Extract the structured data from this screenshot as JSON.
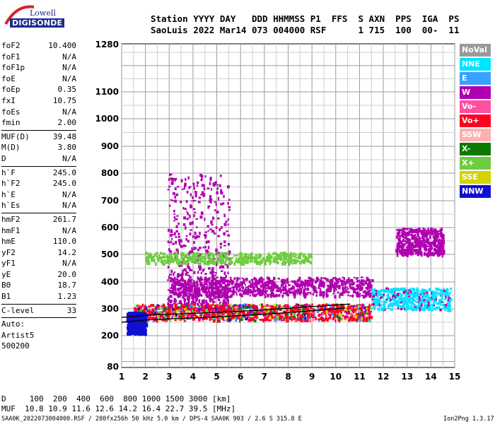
{
  "logo": {
    "top": "Lowell",
    "main": "DIGISONDE"
  },
  "header": {
    "labels": "Station YYYY DAY   DDD HHMMSS P1  FFS  S AXN  PPS  IGA  PS",
    "values": "SaoLuis 2022 Mar14 073 004000 RSF      1 715  100  00-  11"
  },
  "params": [
    {
      "group": [
        {
          "name": "foF2",
          "value": "10.400"
        },
        {
          "name": "foF1",
          "value": "N/A"
        },
        {
          "name": "foF1p",
          "value": "N/A"
        },
        {
          "name": "foE",
          "value": "N/A"
        },
        {
          "name": "foEp",
          "value": "0.35"
        },
        {
          "name": "fxI",
          "value": "10.75"
        },
        {
          "name": "foEs",
          "value": "N/A"
        },
        {
          "name": "fmin",
          "value": "2.00"
        }
      ]
    },
    {
      "group": [
        {
          "name": "MUF(D)",
          "value": "39.48"
        },
        {
          "name": "M(D)",
          "value": "3.80"
        },
        {
          "name": "D",
          "value": "N/A"
        }
      ]
    },
    {
      "group": [
        {
          "name": "h`F",
          "value": "245.0"
        },
        {
          "name": "h`F2",
          "value": "245.0"
        },
        {
          "name": "h`E",
          "value": "N/A"
        },
        {
          "name": "h`Es",
          "value": "N/A"
        }
      ]
    },
    {
      "group": [
        {
          "name": "hmF2",
          "value": "261.7"
        },
        {
          "name": "hmF1",
          "value": "N/A"
        },
        {
          "name": "hmE",
          "value": "110.0"
        },
        {
          "name": "yF2",
          "value": "14.2"
        },
        {
          "name": "yF1",
          "value": "N/A"
        },
        {
          "name": "yE",
          "value": "20.0"
        },
        {
          "name": "B0",
          "value": "18.7"
        },
        {
          "name": "B1",
          "value": "1.23"
        }
      ]
    },
    {
      "group": [
        {
          "name": "C-level",
          "value": "33"
        }
      ]
    }
  ],
  "auto": [
    "Auto:",
    "Artist5",
    "500200"
  ],
  "legend": [
    {
      "label": "NoVal",
      "color": "#9a9a9a"
    },
    {
      "label": "NNE",
      "color": "#00e5ff"
    },
    {
      "label": "E",
      "color": "#3aa0ff"
    },
    {
      "label": "W",
      "color": "#b000b0"
    },
    {
      "label": "Vo-",
      "color": "#ff4fa0"
    },
    {
      "label": "Vo+",
      "color": "#ff0020"
    },
    {
      "label": "SSW",
      "color": "#ffb0b0"
    },
    {
      "label": "X-",
      "color": "#0a7a00"
    },
    {
      "label": "X+",
      "color": "#6ecc40"
    },
    {
      "label": "SSE",
      "color": "#d4d400"
    },
    {
      "label": "NNW",
      "color": "#1010d0"
    }
  ],
  "footer": {
    "line1": "D     100  200  400  600  800 1000 1500 3000 [km]",
    "line2": "MUF  10.8 10.9 11.6 12.6 14.2 16.4 22.7 39.5 [MHz]",
    "filename": "SAA0K_2022073004000.RSF / 280fx256h 50 kHz 5.0 km / DPS-4 SAA0K 903 / 2.6 S 315.8 E",
    "version": "Ion2Png 1.3.17"
  },
  "chart_data": {
    "type": "scatter",
    "xlabel": "",
    "ylabel": "",
    "xlim": [
      1,
      15
    ],
    "ylim": [
      80,
      1280
    ],
    "y_scale": "nonlinear (virtual height, compressed toward top)",
    "x_ticks": [
      1,
      2,
      3,
      4,
      5,
      6,
      7,
      8,
      9,
      10,
      11,
      12,
      13,
      14,
      15
    ],
    "y_ticks": [
      80,
      200,
      300,
      400,
      500,
      600,
      700,
      800,
      900,
      1000,
      1100,
      1280
    ],
    "grid": true,
    "legend_position": "right",
    "trace_o": {
      "name": "",
      "x": [
        1.0,
        2.0,
        3.0,
        4.0,
        5.0,
        6.0,
        7.0,
        8.0,
        9.0,
        10.0,
        10.4
      ],
      "y": [
        250,
        258,
        263,
        266,
        270,
        275,
        280,
        286,
        293,
        300,
        303
      ]
    },
    "trace_x": {
      "name": "",
      "x": [
        1.0,
        2.0,
        3.0,
        4.0,
        5.0,
        6.0,
        7.0,
        8.0,
        9.0,
        10.0,
        10.6
      ],
      "y": [
        268,
        276,
        280,
        283,
        287,
        291,
        296,
        302,
        308,
        314,
        318
      ]
    },
    "echo_clusters": [
      {
        "direction": "W",
        "x": [
          2.9,
          5.5
        ],
        "y": [
          300,
          800
        ]
      },
      {
        "direction": "W",
        "x": [
          3.0,
          11.5
        ],
        "y": [
          350,
          420
        ]
      },
      {
        "direction": "Vo+",
        "x": [
          1.5,
          11.5
        ],
        "y": [
          260,
          320
        ]
      },
      {
        "direction": "NNE",
        "x": [
          11.5,
          14.8
        ],
        "y": [
          300,
          380
        ]
      },
      {
        "direction": "X+",
        "x": [
          2.0,
          9.0
        ],
        "y": [
          470,
          510
        ]
      },
      {
        "direction": "NNW",
        "x": [
          1.2,
          2.0
        ],
        "y": [
          210,
          290
        ]
      },
      {
        "direction": "W",
        "x": [
          12.5,
          14.5
        ],
        "y": [
          500,
          600
        ]
      }
    ]
  }
}
